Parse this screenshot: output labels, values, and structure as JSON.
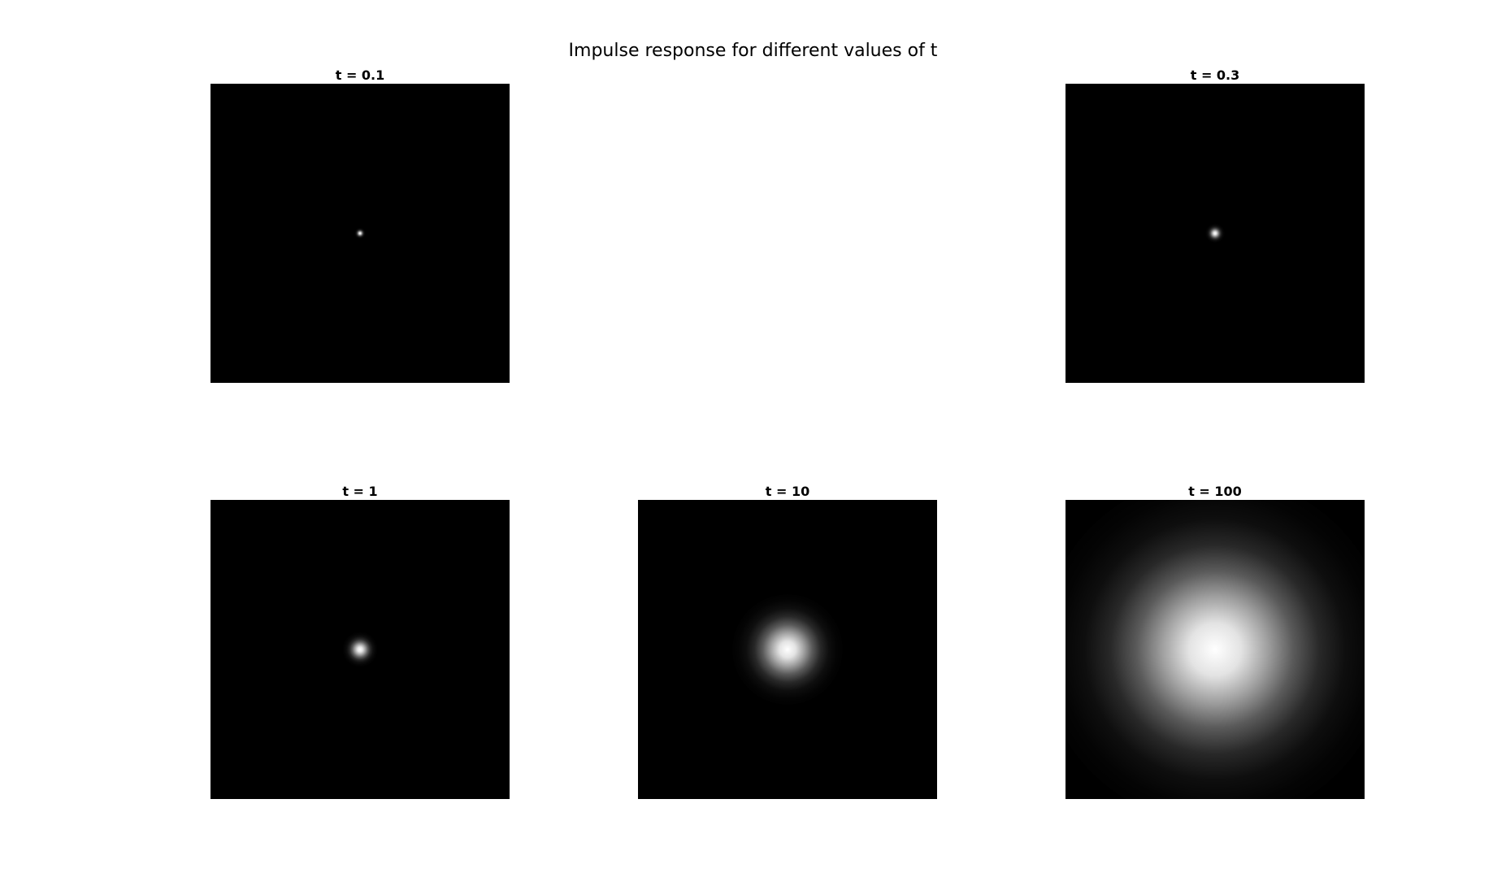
{
  "figure": {
    "title": "Impulse response for different values of t"
  },
  "chart_data": [
    {
      "type": "heatmap",
      "title": "t = 0.1",
      "t": 0.1,
      "colormap": "gray"
    },
    {
      "type": "heatmap",
      "title": "t = 0.3",
      "t": 0.3,
      "colormap": "gray"
    },
    {
      "type": "heatmap",
      "title": "t = 1",
      "t": 1,
      "colormap": "gray"
    },
    {
      "type": "heatmap",
      "title": "t = 10",
      "t": 10,
      "colormap": "gray"
    },
    {
      "type": "heatmap",
      "title": "t = 100",
      "t": 100,
      "colormap": "gray"
    }
  ]
}
